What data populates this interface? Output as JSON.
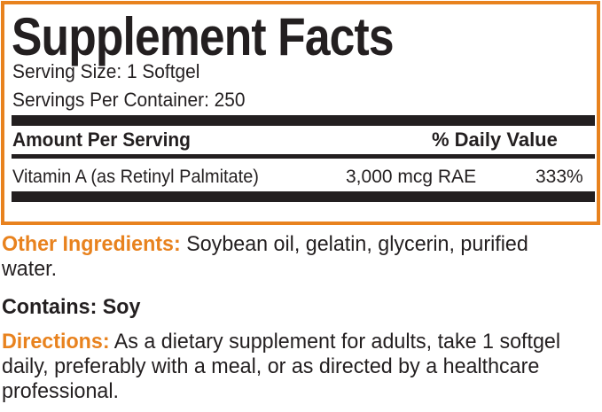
{
  "colors": {
    "accent": "#e8821e",
    "text": "#231f20"
  },
  "facts": {
    "title": "Supplement Facts",
    "serving_size": "Serving Size: 1 Softgel",
    "servings_per_container": "Servings Per Container: 250",
    "header_amount": "Amount Per Serving",
    "header_dv": "% Daily Value",
    "rows": [
      {
        "name": "Vitamin A (as Retinyl Palmitate)",
        "amount": "3,000 mcg RAE",
        "dv": "333%"
      }
    ]
  },
  "other_ingredients": {
    "label": "Other Ingredients:",
    "text": " Soybean oil, gelatin, glycerin, purified water."
  },
  "contains": "Contains: Soy",
  "directions": {
    "label": "Directions:",
    "text": " As a dietary supplement for adults, take 1 softgel daily, preferably with a meal, or as directed by a healthcare professional."
  }
}
